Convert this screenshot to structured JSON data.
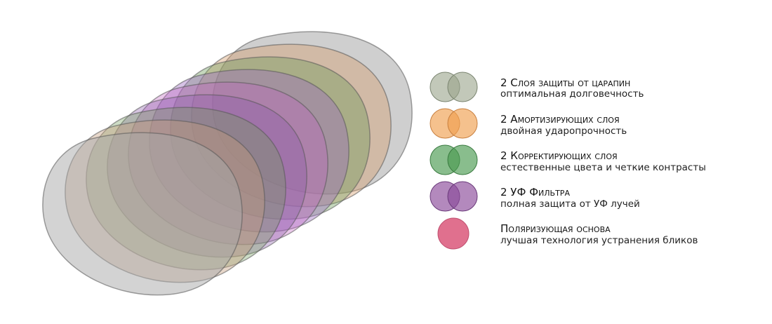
{
  "legend": [
    {
      "title": "2 Слоя защиты от царапин",
      "subtitle": "оптимальная долговечность"
    },
    {
      "title": "2 Амортизирующих слоя",
      "subtitle": "двойная ударопрочность"
    },
    {
      "title": "2 Корректирующих слоя",
      "subtitle": "естественные цвета и четкие контрасты"
    },
    {
      "title": "2 УФ Фильтра",
      "subtitle": "полная защита от УФ лучей"
    },
    {
      "title": "Поляризующая основа",
      "subtitle": "лучшая технология устранения бликов"
    }
  ]
}
